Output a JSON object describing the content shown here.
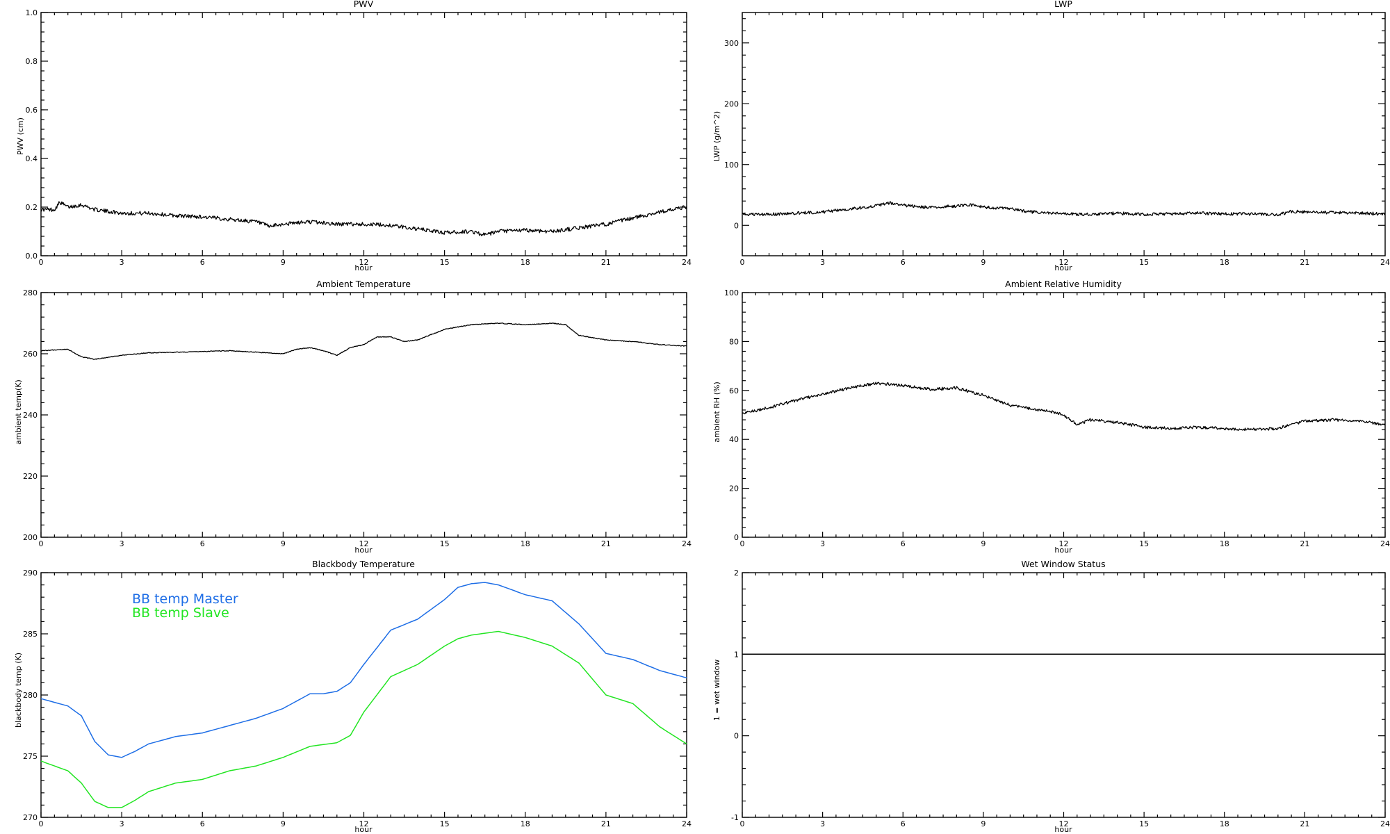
{
  "chart_data": [
    {
      "id": "pwv",
      "type": "line",
      "title": "PWV",
      "xlabel": "hour",
      "ylabel": "PWV (cm)",
      "xlim": [
        0,
        24
      ],
      "ylim": [
        0,
        1
      ],
      "xticks": [
        0,
        3,
        6,
        9,
        12,
        15,
        18,
        21,
        24
      ],
      "yticks": [
        0,
        0.2,
        0.4,
        0.6,
        0.8,
        1
      ],
      "ytick_labels": [
        "0.0",
        "0.2",
        "0.4",
        "0.6",
        "0.8",
        "1.0"
      ],
      "noise": 0.008,
      "series": [
        {
          "color": "#000000",
          "points": [
            [
              0,
              0.19
            ],
            [
              0.5,
              0.19
            ],
            [
              0.7,
              0.22
            ],
            [
              1,
              0.2
            ],
            [
              1.5,
              0.21
            ],
            [
              2,
              0.19
            ],
            [
              3,
              0.175
            ],
            [
              4,
              0.175
            ],
            [
              5,
              0.165
            ],
            [
              6,
              0.16
            ],
            [
              7,
              0.15
            ],
            [
              8,
              0.14
            ],
            [
              8.5,
              0.12
            ],
            [
              9,
              0.13
            ],
            [
              10,
              0.14
            ],
            [
              11,
              0.13
            ],
            [
              12,
              0.13
            ],
            [
              13,
              0.125
            ],
            [
              14,
              0.11
            ],
            [
              15,
              0.095
            ],
            [
              16,
              0.1
            ],
            [
              16.5,
              0.085
            ],
            [
              17,
              0.1
            ],
            [
              18,
              0.105
            ],
            [
              19,
              0.1
            ],
            [
              20,
              0.115
            ],
            [
              21,
              0.13
            ],
            [
              22,
              0.155
            ],
            [
              23,
              0.18
            ],
            [
              24,
              0.2
            ]
          ]
        }
      ]
    },
    {
      "id": "lwp",
      "type": "line",
      "title": "LWP",
      "xlabel": "hour",
      "ylabel": "LWP (g/m^2)",
      "xlim": [
        0,
        24
      ],
      "ylim": [
        -50,
        350
      ],
      "xticks": [
        0,
        3,
        6,
        9,
        12,
        15,
        18,
        21,
        24
      ],
      "yticks": [
        0,
        100,
        200,
        300
      ],
      "ytick_labels": [
        "0",
        "100",
        "200",
        "300"
      ],
      "noise": 2.5,
      "series": [
        {
          "color": "#000000",
          "points": [
            [
              0,
              18
            ],
            [
              1,
              18
            ],
            [
              2,
              20
            ],
            [
              3,
              22
            ],
            [
              4,
              27
            ],
            [
              5,
              32
            ],
            [
              5.5,
              37
            ],
            [
              6,
              33
            ],
            [
              7,
              29
            ],
            [
              8,
              32
            ],
            [
              8.5,
              34
            ],
            [
              9,
              30
            ],
            [
              10,
              27
            ],
            [
              11,
              21
            ],
            [
              12,
              19
            ],
            [
              13,
              18
            ],
            [
              14,
              20
            ],
            [
              15,
              18
            ],
            [
              16,
              19
            ],
            [
              17,
              20
            ],
            [
              18,
              19
            ],
            [
              19,
              19
            ],
            [
              20,
              17
            ],
            [
              20.5,
              23
            ],
            [
              21,
              22
            ],
            [
              22,
              21
            ],
            [
              23,
              20
            ],
            [
              24,
              19
            ]
          ]
        }
      ]
    },
    {
      "id": "temp",
      "type": "line",
      "title": "Ambient Temperature",
      "xlabel": "hour",
      "ylabel": "ambient temp(K)",
      "xlim": [
        0,
        24
      ],
      "ylim": [
        200,
        280
      ],
      "xticks": [
        0,
        3,
        6,
        9,
        12,
        15,
        18,
        21,
        24
      ],
      "yticks": [
        200,
        220,
        240,
        260,
        280
      ],
      "ytick_labels": [
        "200",
        "220",
        "240",
        "260",
        "280"
      ],
      "noise": 0.12,
      "series": [
        {
          "color": "#000000",
          "points": [
            [
              0,
              261
            ],
            [
              1,
              261.5
            ],
            [
              1.5,
              259
            ],
            [
              2,
              258.2
            ],
            [
              3,
              259.5
            ],
            [
              4,
              260.3
            ],
            [
              5,
              260.5
            ],
            [
              6,
              260.7
            ],
            [
              7,
              261
            ],
            [
              8,
              260.5
            ],
            [
              9,
              260
            ],
            [
              9.5,
              261.5
            ],
            [
              10,
              262
            ],
            [
              10.5,
              261
            ],
            [
              11,
              259.5
            ],
            [
              11.5,
              262
            ],
            [
              12,
              263
            ],
            [
              12.5,
              265.5
            ],
            [
              13,
              265.5
            ],
            [
              13.5,
              264
            ],
            [
              14,
              264.5
            ],
            [
              15,
              268
            ],
            [
              16,
              269.5
            ],
            [
              17,
              270
            ],
            [
              18,
              269.5
            ],
            [
              19,
              270
            ],
            [
              19.5,
              269.5
            ],
            [
              20,
              266
            ],
            [
              21,
              264.5
            ],
            [
              22,
              264
            ],
            [
              23,
              263
            ],
            [
              24,
              262.5
            ]
          ]
        }
      ]
    },
    {
      "id": "rh",
      "type": "line",
      "title": "Ambient Relative Humidity",
      "xlabel": "hour",
      "ylabel": "ambient RH (%)",
      "xlim": [
        0,
        24
      ],
      "ylim": [
        0,
        100
      ],
      "xticks": [
        0,
        3,
        6,
        9,
        12,
        15,
        18,
        21,
        24
      ],
      "yticks": [
        0,
        20,
        40,
        60,
        80,
        100
      ],
      "ytick_labels": [
        "0",
        "20",
        "40",
        "60",
        "80",
        "100"
      ],
      "noise": 0.6,
      "series": [
        {
          "color": "#000000",
          "points": [
            [
              0,
              50.5
            ],
            [
              1,
              53
            ],
            [
              2,
              56
            ],
            [
              3,
              58.5
            ],
            [
              4,
              61
            ],
            [
              5,
              63
            ],
            [
              6,
              62
            ],
            [
              7,
              60.5
            ],
            [
              8,
              61
            ],
            [
              9,
              58
            ],
            [
              10,
              54
            ],
            [
              11,
              52
            ],
            [
              11.5,
              51.5
            ],
            [
              12,
              50
            ],
            [
              12.5,
              46
            ],
            [
              13,
              48
            ],
            [
              14,
              47
            ],
            [
              15,
              45
            ],
            [
              16,
              44.5
            ],
            [
              17,
              45
            ],
            [
              18,
              44.5
            ],
            [
              19,
              44
            ],
            [
              20,
              44.5
            ],
            [
              21,
              47.5
            ],
            [
              22,
              48
            ],
            [
              23,
              47.5
            ],
            [
              24,
              46
            ]
          ]
        }
      ]
    },
    {
      "id": "bb",
      "type": "line",
      "title": "Blackbody Temperature",
      "xlabel": "hour",
      "ylabel": "blackbody temp (K)",
      "xlim": [
        0,
        24
      ],
      "ylim": [
        270,
        290
      ],
      "xticks": [
        0,
        3,
        6,
        9,
        12,
        15,
        18,
        21,
        24
      ],
      "yticks": [
        270,
        275,
        280,
        285,
        290
      ],
      "ytick_labels": [
        "270",
        "275",
        "280",
        "285",
        "290"
      ],
      "noise": 0,
      "legend": [
        "BB temp Master",
        "BB temp Slave"
      ],
      "series": [
        {
          "name": "BB temp Master",
          "color": "#1e6ee6",
          "points": [
            [
              0,
              279.7
            ],
            [
              1,
              279.1
            ],
            [
              1.5,
              278.3
            ],
            [
              2,
              276.2
            ],
            [
              2.5,
              275.1
            ],
            [
              3,
              274.9
            ],
            [
              3.5,
              275.4
            ],
            [
              4,
              276
            ],
            [
              5,
              276.6
            ],
            [
              6,
              276.9
            ],
            [
              7,
              277.5
            ],
            [
              8,
              278.1
            ],
            [
              9,
              278.9
            ],
            [
              10,
              280.1
            ],
            [
              10.5,
              280.1
            ],
            [
              11,
              280.3
            ],
            [
              11.5,
              281
            ],
            [
              12,
              282.5
            ],
            [
              13,
              285.3
            ],
            [
              14,
              286.2
            ],
            [
              15,
              287.8
            ],
            [
              15.5,
              288.8
            ],
            [
              16,
              289.1
            ],
            [
              16.5,
              289.2
            ],
            [
              17,
              289
            ],
            [
              18,
              288.2
            ],
            [
              19,
              287.7
            ],
            [
              20,
              285.8
            ],
            [
              21,
              283.4
            ],
            [
              22,
              282.9
            ],
            [
              23,
              282
            ],
            [
              24,
              281.4
            ]
          ]
        },
        {
          "name": "BB temp Slave",
          "color": "#22e522",
          "points": [
            [
              0,
              274.6
            ],
            [
              1,
              273.8
            ],
            [
              1.5,
              272.8
            ],
            [
              2,
              271.3
            ],
            [
              2.5,
              270.8
            ],
            [
              3,
              270.8
            ],
            [
              3.5,
              271.4
            ],
            [
              4,
              272.1
            ],
            [
              5,
              272.8
            ],
            [
              6,
              273.1
            ],
            [
              7,
              273.8
            ],
            [
              8,
              274.2
            ],
            [
              9,
              274.9
            ],
            [
              10,
              275.8
            ],
            [
              11,
              276.1
            ],
            [
              11.5,
              276.7
            ],
            [
              12,
              278.6
            ],
            [
              13,
              281.5
            ],
            [
              14,
              282.5
            ],
            [
              15,
              284
            ],
            [
              15.5,
              284.6
            ],
            [
              16,
              284.9
            ],
            [
              17,
              285.2
            ],
            [
              18,
              284.7
            ],
            [
              19,
              284
            ],
            [
              20,
              282.6
            ],
            [
              21,
              280
            ],
            [
              22,
              279.3
            ],
            [
              23,
              277.4
            ],
            [
              24,
              276
            ]
          ]
        }
      ]
    },
    {
      "id": "wet",
      "type": "line",
      "title": "Wet Window Status",
      "xlabel": "hour",
      "ylabel": "1 = wet window",
      "xlim": [
        0,
        24
      ],
      "ylim": [
        -1,
        2
      ],
      "xticks": [
        0,
        3,
        6,
        9,
        12,
        15,
        18,
        21,
        24
      ],
      "yticks": [
        -1,
        0,
        1,
        2
      ],
      "ytick_labels": [
        "-1",
        "0",
        "1",
        "2"
      ],
      "noise": 0,
      "series": [
        {
          "color": "#000000",
          "points": [
            [
              0,
              1
            ],
            [
              24,
              1
            ]
          ]
        }
      ]
    }
  ]
}
